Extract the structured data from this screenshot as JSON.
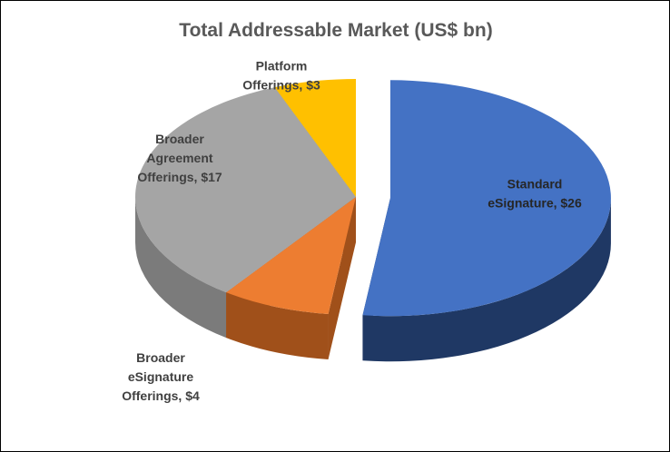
{
  "chart_data": {
    "type": "pie",
    "title": "Total Addressable Market (US$ bn)",
    "slices": [
      {
        "name": "Standard eSignature",
        "value": 26,
        "label_lines": [
          "Standard",
          "eSignature,  $26"
        ],
        "color": "#4472C4",
        "side_color": "#1F3864",
        "exploded": true
      },
      {
        "name": "Broader eSignature Offerings",
        "value": 4,
        "label_lines": [
          "Broader",
          "eSignature",
          "Offerings,  $4"
        ],
        "color": "#ED7D31",
        "side_color": "#A0501A",
        "exploded": false
      },
      {
        "name": "Broader Agreement Offerings",
        "value": 17,
        "label_lines": [
          "Broader",
          "Agreement",
          "Offerings,  $17"
        ],
        "color": "#A5A5A5",
        "side_color": "#7B7B7B",
        "exploded": false
      },
      {
        "name": "Platform Offerings",
        "value": 3,
        "label_lines": [
          "Platform",
          "Offerings,  $3"
        ],
        "color": "#FFC000",
        "side_color": "#B38600",
        "exploded": false
      }
    ]
  }
}
